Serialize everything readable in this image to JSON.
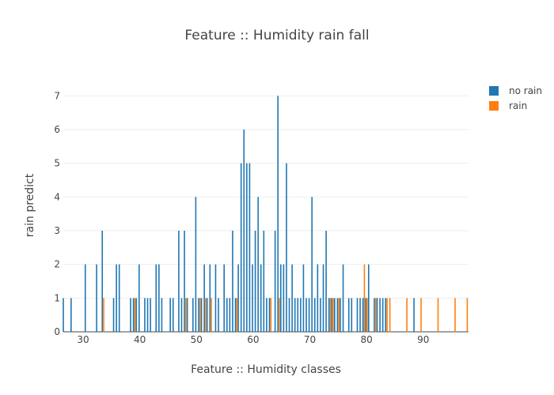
{
  "chart_data": {
    "type": "bar",
    "title": "Feature :: Humidity rain fall",
    "xlabel": "Feature :: Humidity classes",
    "ylabel": "rain predict",
    "xlim": [
      26.5,
      98
    ],
    "ylim": [
      0,
      7.5
    ],
    "x_ticks": [
      30,
      40,
      50,
      60,
      70,
      80,
      90
    ],
    "y_ticks": [
      0,
      1,
      2,
      3,
      4,
      5,
      6,
      7
    ],
    "grid": true,
    "legend_position": "top-right",
    "series": [
      {
        "name": "no rain",
        "color": "#1f77b4",
        "points": [
          [
            26.5,
            1
          ],
          [
            28,
            1
          ],
          [
            30.5,
            2
          ],
          [
            32.5,
            2
          ],
          [
            33.5,
            3
          ],
          [
            35.5,
            1
          ],
          [
            36,
            2
          ],
          [
            36.5,
            2
          ],
          [
            38.5,
            1
          ],
          [
            39,
            1
          ],
          [
            39.5,
            1
          ],
          [
            40,
            2
          ],
          [
            41,
            1
          ],
          [
            41.5,
            1
          ],
          [
            42,
            1
          ],
          [
            43,
            2
          ],
          [
            43.5,
            2
          ],
          [
            44,
            1
          ],
          [
            45.5,
            1
          ],
          [
            46,
            1
          ],
          [
            47,
            3
          ],
          [
            47.5,
            1
          ],
          [
            48,
            3
          ],
          [
            48.5,
            1
          ],
          [
            49.5,
            1
          ],
          [
            50,
            4
          ],
          [
            50.5,
            1
          ],
          [
            51,
            1
          ],
          [
            51.5,
            2
          ],
          [
            52,
            1
          ],
          [
            52.5,
            2
          ],
          [
            53.5,
            2
          ],
          [
            54,
            1
          ],
          [
            55,
            2
          ],
          [
            55.5,
            1
          ],
          [
            56,
            1
          ],
          [
            56.5,
            3
          ],
          [
            57,
            1
          ],
          [
            57.5,
            2
          ],
          [
            58,
            5
          ],
          [
            58.5,
            6
          ],
          [
            59,
            5
          ],
          [
            59.5,
            5
          ],
          [
            60,
            2
          ],
          [
            60.5,
            3
          ],
          [
            61,
            4
          ],
          [
            61.5,
            2
          ],
          [
            62,
            3
          ],
          [
            62.5,
            1
          ],
          [
            63,
            1
          ],
          [
            64,
            3
          ],
          [
            64.5,
            7
          ],
          [
            65,
            2
          ],
          [
            65.5,
            2
          ],
          [
            66,
            5
          ],
          [
            66.5,
            1
          ],
          [
            67,
            2
          ],
          [
            67.5,
            1
          ],
          [
            68,
            1
          ],
          [
            68.5,
            1
          ],
          [
            69,
            2
          ],
          [
            69.5,
            1
          ],
          [
            70,
            1
          ],
          [
            70.5,
            4
          ],
          [
            71,
            1
          ],
          [
            71.5,
            2
          ],
          [
            72,
            1
          ],
          [
            72.5,
            2
          ],
          [
            73,
            3
          ],
          [
            73.5,
            1
          ],
          [
            74,
            1
          ],
          [
            74.5,
            1
          ],
          [
            75,
            1
          ],
          [
            75.5,
            1
          ],
          [
            76,
            2
          ],
          [
            77,
            1
          ],
          [
            77.5,
            1
          ],
          [
            78.5,
            1
          ],
          [
            79,
            1
          ],
          [
            79.5,
            1
          ],
          [
            80,
            1
          ],
          [
            80.5,
            2
          ],
          [
            81.5,
            1
          ],
          [
            82,
            1
          ],
          [
            82.5,
            1
          ],
          [
            83,
            1
          ],
          [
            83.5,
            1
          ],
          [
            88.5,
            1
          ]
        ]
      },
      {
        "name": "rain",
        "color": "#ff7f0e",
        "points": [
          [
            33.5,
            1
          ],
          [
            39,
            1
          ],
          [
            48,
            1
          ],
          [
            50.5,
            1
          ],
          [
            51.5,
            1
          ],
          [
            52.5,
            1
          ],
          [
            57,
            1
          ],
          [
            63,
            1
          ],
          [
            64.5,
            1
          ],
          [
            73.5,
            1
          ],
          [
            74,
            1
          ],
          [
            75,
            1
          ],
          [
            79.5,
            2
          ],
          [
            80,
            1
          ],
          [
            81.5,
            1
          ],
          [
            83.5,
            1
          ],
          [
            84,
            1
          ],
          [
            87,
            1
          ],
          [
            89.5,
            1
          ],
          [
            92.5,
            1
          ],
          [
            95.5,
            1
          ],
          [
            98,
            1
          ]
        ]
      }
    ]
  }
}
